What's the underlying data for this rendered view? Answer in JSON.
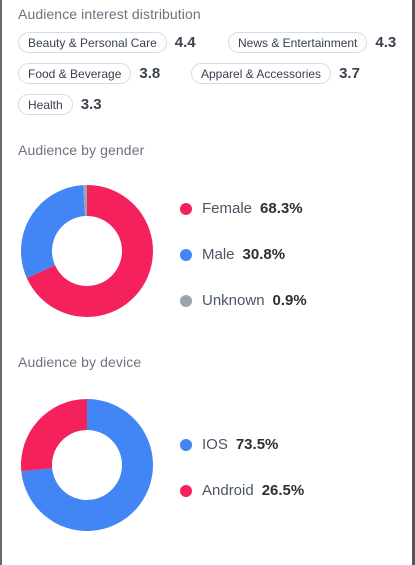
{
  "interest": {
    "title": "Audience interest distribution",
    "items": [
      {
        "label": "Beauty & Personal Care",
        "score": "4.4"
      },
      {
        "label": "News & Entertainment",
        "score": "4.3"
      },
      {
        "label": "Food & Beverage",
        "score": "3.8"
      },
      {
        "label": "Apparel & Accessories",
        "score": "3.7"
      },
      {
        "label": "Health",
        "score": "3.3"
      }
    ]
  },
  "gender": {
    "title": "Audience by gender",
    "items": [
      {
        "label": "Female",
        "value": "68.3%",
        "color": "#f5215d"
      },
      {
        "label": "Male",
        "value": "30.8%",
        "color": "#4285f4"
      },
      {
        "label": "Unknown",
        "value": "0.9%",
        "color": "#9ca3af"
      }
    ]
  },
  "device": {
    "title": "Audience by device",
    "items": [
      {
        "label": "IOS",
        "value": "73.5%",
        "color": "#4285f4"
      },
      {
        "label": "Android",
        "value": "26.5%",
        "color": "#f5215d"
      }
    ]
  },
  "chart_data": [
    {
      "type": "pie",
      "title": "Audience by gender",
      "categories": [
        "Female",
        "Male",
        "Unknown"
      ],
      "values": [
        68.3,
        30.8,
        0.9
      ],
      "colors": [
        "#f5215d",
        "#4285f4",
        "#9ca3af"
      ]
    },
    {
      "type": "pie",
      "title": "Audience by device",
      "categories": [
        "IOS",
        "Android"
      ],
      "values": [
        73.5,
        26.5
      ],
      "colors": [
        "#4285f4",
        "#f5215d"
      ]
    }
  ]
}
